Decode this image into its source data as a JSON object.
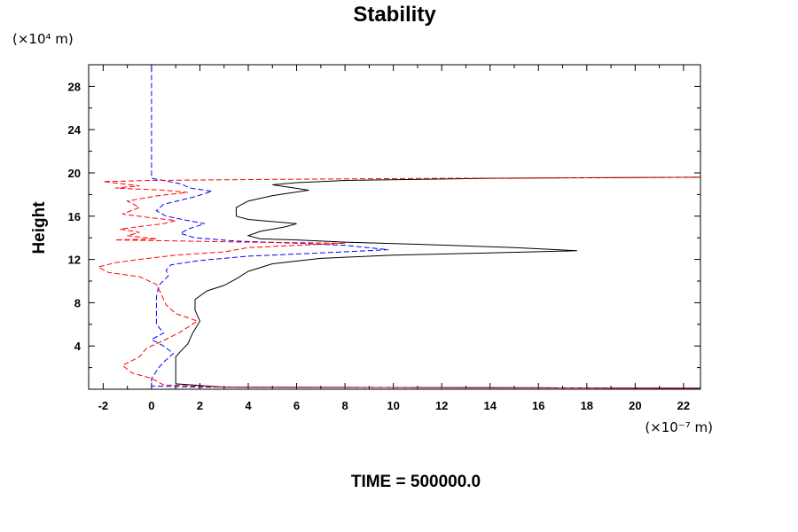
{
  "chart_data": {
    "type": "line",
    "title": "Stability",
    "ylabel": "Height",
    "xlabel": "",
    "y_unit": "(×10⁴ m)",
    "x_unit": "(×10⁻⁷ m)",
    "footer": "TIME = 500000.0",
    "xlim": [
      -2.6,
      22.7
    ],
    "ylim": [
      0,
      30
    ],
    "x_ticks": [
      -2,
      0,
      2,
      4,
      6,
      8,
      10,
      12,
      14,
      16,
      18,
      20,
      22
    ],
    "y_ticks": [
      4,
      8,
      12,
      16,
      20,
      24,
      28
    ],
    "grid": false,
    "series": [
      {
        "color": "#000000",
        "style": "solid",
        "points": [
          [
            22.7,
            19.6
          ],
          [
            14.0,
            19.5
          ],
          [
            8.0,
            19.3
          ],
          [
            6.0,
            19.1
          ],
          [
            5.0,
            18.9
          ],
          [
            6.5,
            18.4
          ],
          [
            5.0,
            17.9
          ],
          [
            4.0,
            17.4
          ],
          [
            3.5,
            16.8
          ],
          [
            3.5,
            16.0
          ],
          [
            4.0,
            15.7
          ],
          [
            5.0,
            15.5
          ],
          [
            6.0,
            15.3
          ],
          [
            5.5,
            15.0
          ],
          [
            4.5,
            14.6
          ],
          [
            4.0,
            14.2
          ],
          [
            4.5,
            13.9
          ],
          [
            6.0,
            13.8
          ],
          [
            8.0,
            13.6
          ],
          [
            11.0,
            13.4
          ],
          [
            15.0,
            13.1
          ],
          [
            17.6,
            12.8
          ],
          [
            14.0,
            12.6
          ],
          [
            10.0,
            12.4
          ],
          [
            7.0,
            12.1
          ],
          [
            5.0,
            11.6
          ],
          [
            4.0,
            10.9
          ],
          [
            3.5,
            10.2
          ],
          [
            3.0,
            9.6
          ],
          [
            2.3,
            9.1
          ],
          [
            1.8,
            8.3
          ],
          [
            1.8,
            7.3
          ],
          [
            2.0,
            6.3
          ],
          [
            1.7,
            5.2
          ],
          [
            1.5,
            4.2
          ],
          [
            1.2,
            3.5
          ],
          [
            1.0,
            3.0
          ],
          [
            1.0,
            1.8
          ],
          [
            1.0,
            0.5
          ],
          [
            3.0,
            0.2
          ],
          [
            22.7,
            0.1
          ]
        ]
      },
      {
        "color": "#0000ff",
        "style": "dashed",
        "points": [
          [
            0,
            29.8
          ],
          [
            0,
            25.0
          ],
          [
            0,
            19.5
          ],
          [
            1.2,
            19.0
          ],
          [
            1.6,
            18.6
          ],
          [
            2.5,
            18.3
          ],
          [
            1.8,
            17.8
          ],
          [
            0.5,
            17.1
          ],
          [
            0.2,
            16.5
          ],
          [
            0.6,
            16.0
          ],
          [
            1.5,
            15.6
          ],
          [
            2.2,
            15.3
          ],
          [
            1.5,
            14.8
          ],
          [
            1.2,
            14.4
          ],
          [
            1.8,
            14.0
          ],
          [
            3.5,
            13.7
          ],
          [
            6.0,
            13.5
          ],
          [
            8.0,
            13.3
          ],
          [
            9.8,
            12.9
          ],
          [
            7.0,
            12.6
          ],
          [
            4.0,
            12.3
          ],
          [
            2.0,
            11.9
          ],
          [
            0.8,
            11.5
          ],
          [
            0.6,
            11.0
          ],
          [
            0.7,
            10.5
          ],
          [
            0.3,
            9.6
          ],
          [
            0.2,
            8.5
          ],
          [
            0.2,
            7.2
          ],
          [
            0.2,
            6.0
          ],
          [
            0.5,
            5.2
          ],
          [
            0.0,
            4.6
          ],
          [
            0.5,
            4.0
          ],
          [
            0.9,
            3.3
          ],
          [
            0.5,
            2.5
          ],
          [
            0.3,
            2.0
          ],
          [
            0.0,
            1.0
          ],
          [
            0.0,
            0.3
          ],
          [
            2.0,
            0.2
          ],
          [
            22.7,
            0.1
          ]
        ]
      },
      {
        "color": "#ff0000",
        "style": "dashed",
        "points": [
          [
            22.7,
            19.6
          ],
          [
            12.0,
            19.5
          ],
          [
            5.0,
            19.4
          ],
          [
            0.0,
            19.3
          ],
          [
            -2.0,
            19.2
          ],
          [
            -0.5,
            18.8
          ],
          [
            -1.5,
            18.6
          ],
          [
            0.5,
            18.4
          ],
          [
            1.5,
            18.2
          ],
          [
            0.3,
            17.9
          ],
          [
            -1.0,
            17.4
          ],
          [
            -0.5,
            16.8
          ],
          [
            -1.2,
            16.2
          ],
          [
            -0.2,
            15.9
          ],
          [
            1.0,
            15.6
          ],
          [
            0.5,
            15.3
          ],
          [
            -0.3,
            15.1
          ],
          [
            -1.3,
            14.8
          ],
          [
            -0.5,
            14.5
          ],
          [
            -1.0,
            14.2
          ],
          [
            0.2,
            13.9
          ],
          [
            -1.5,
            13.8
          ],
          [
            4.0,
            13.6
          ],
          [
            8.0,
            13.5
          ],
          [
            4.0,
            13.1
          ],
          [
            3.0,
            12.7
          ],
          [
            1.0,
            12.4
          ],
          [
            -0.5,
            12.0
          ],
          [
            -1.5,
            11.7
          ],
          [
            -2.2,
            11.3
          ],
          [
            -1.8,
            10.8
          ],
          [
            -0.5,
            10.4
          ],
          [
            0.2,
            9.7
          ],
          [
            0.4,
            8.8
          ],
          [
            0.6,
            7.8
          ],
          [
            1.0,
            7.0
          ],
          [
            1.9,
            6.3
          ],
          [
            1.2,
            5.3
          ],
          [
            0.5,
            4.5
          ],
          [
            -0.2,
            3.8
          ],
          [
            -0.5,
            3.0
          ],
          [
            -1.2,
            2.2
          ],
          [
            -0.8,
            1.5
          ],
          [
            0.0,
            1.0
          ],
          [
            0.5,
            0.4
          ],
          [
            3.0,
            0.2
          ],
          [
            22.7,
            0.1
          ]
        ]
      }
    ]
  }
}
